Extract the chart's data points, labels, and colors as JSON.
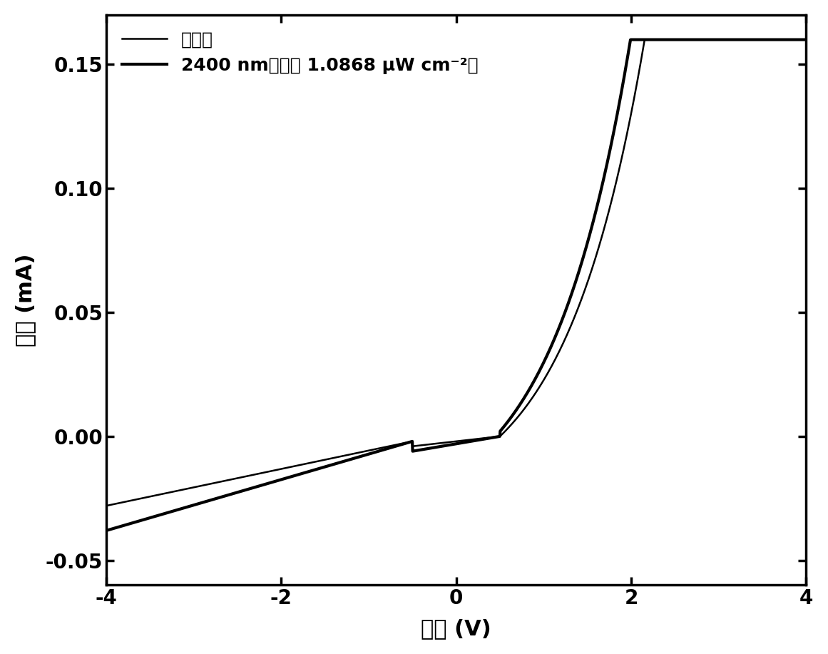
{
  "xlabel": "电压 (V)",
  "ylabel": "电流 (mA)",
  "legend_dark": "暗条件",
  "legend_light": "2400 nm光照（ 1.0868 μW cm⁻²）",
  "xlim": [
    -4,
    4
  ],
  "ylim": [
    -0.06,
    0.17
  ],
  "yticks": [
    -0.05,
    0.0,
    0.05,
    0.1,
    0.15
  ],
  "xticks": [
    -4,
    -2,
    0,
    2,
    4
  ],
  "background_color": "#ffffff",
  "line_color": "#000000",
  "linewidth_dark": 1.8,
  "linewidth_light": 3.0
}
